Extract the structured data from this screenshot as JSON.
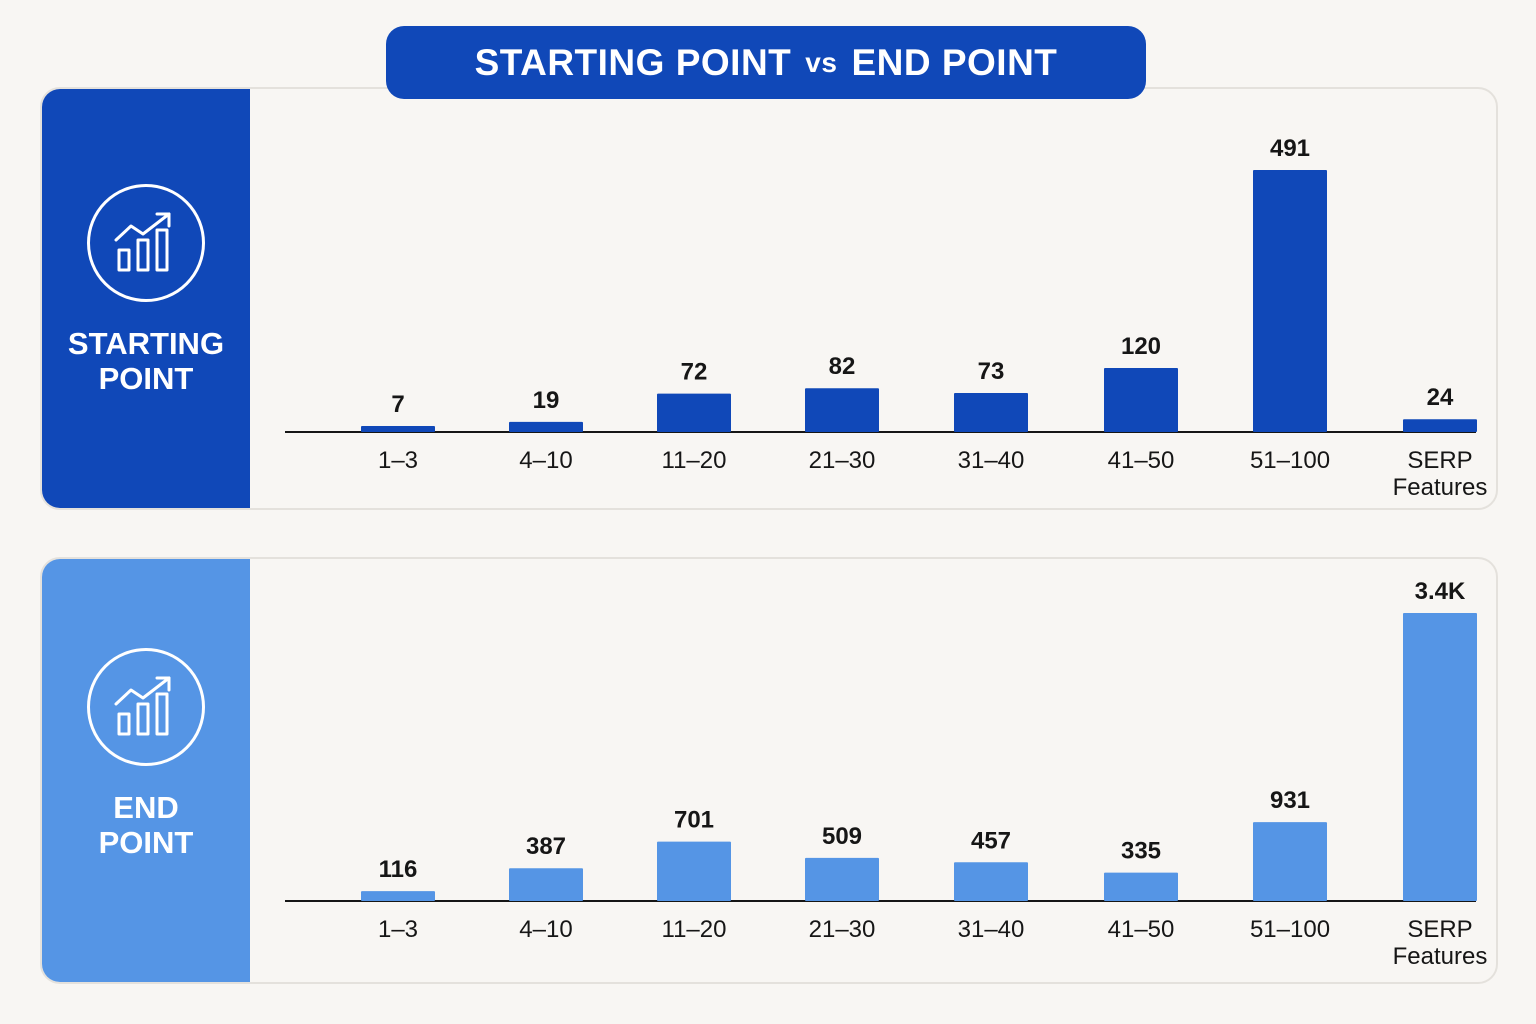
{
  "title": {
    "left": "STARTING POINT",
    "vs": "vs",
    "right": "END POINT"
  },
  "colors": {
    "start": "#1048b8",
    "end": "#5595e5",
    "axis": "#161616"
  },
  "panels": [
    {
      "label": "STARTING\nPOINT",
      "icon": "chart-growth-icon"
    },
    {
      "label": "END\nPOINT",
      "icon": "chart-growth-icon"
    }
  ],
  "chart_data": [
    {
      "type": "bar",
      "title": "STARTING POINT",
      "categories": [
        "1–3",
        "4–10",
        "11–20",
        "21–30",
        "31–40",
        "41–50",
        "51–100",
        "SERP\nFeatures"
      ],
      "values": [
        7,
        19,
        72,
        82,
        73,
        120,
        491,
        24
      ],
      "value_labels": [
        "7",
        "19",
        "72",
        "82",
        "73",
        "120",
        "491",
        "24"
      ],
      "grid": false,
      "legend": "none"
    },
    {
      "type": "bar",
      "title": "END POINT",
      "categories": [
        "1–3",
        "4–10",
        "11–20",
        "21–30",
        "31–40",
        "41–50",
        "51–100",
        "SERP\nFeatures"
      ],
      "values": [
        116,
        387,
        701,
        509,
        457,
        335,
        931,
        3400
      ],
      "value_labels": [
        "116",
        "387",
        "701",
        "509",
        "457",
        "335",
        "931",
        "3.4K"
      ],
      "grid": false,
      "legend": "none"
    }
  ]
}
